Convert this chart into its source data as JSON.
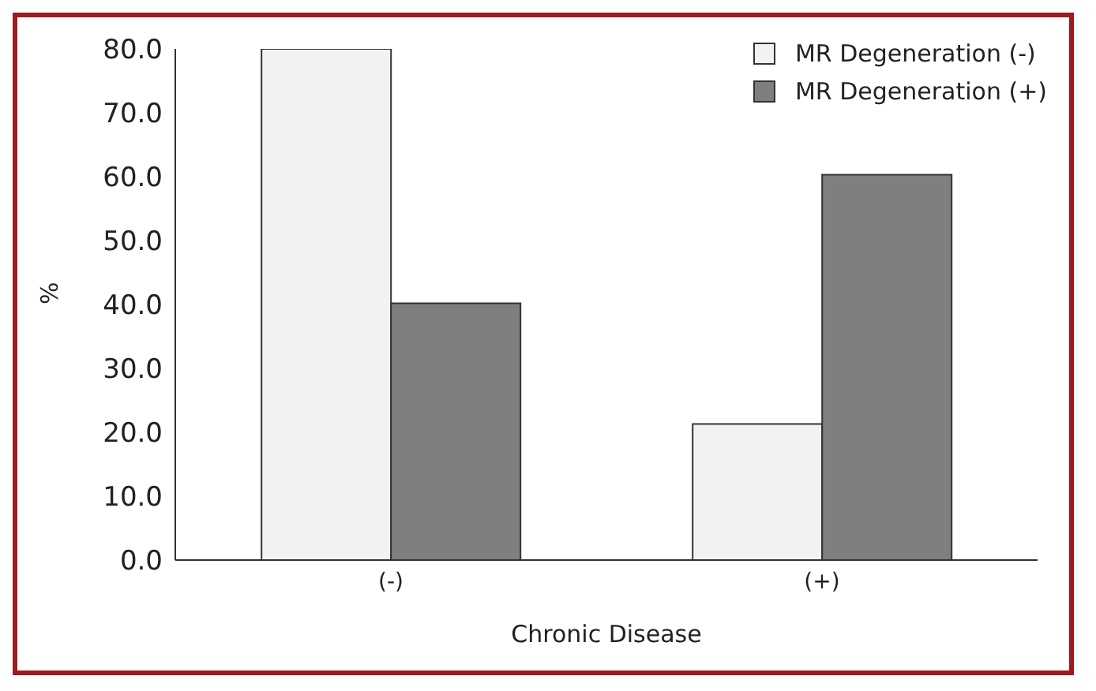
{
  "chart_data": {
    "type": "bar",
    "xlabel": "Chronic Disease",
    "ylabel": "%",
    "categories": [
      "(-)",
      "(+)"
    ],
    "series": [
      {
        "name": "MR Degeneration (-)",
        "color": "#f2f2f2",
        "values": [
          80.0,
          21.3
        ]
      },
      {
        "name": "MR Degeneration (+)",
        "color": "#7f7f7f",
        "values": [
          40.2,
          60.3
        ]
      }
    ],
    "ylim": [
      0,
      80
    ],
    "yticks": [
      {
        "value": 0,
        "label": "0.0"
      },
      {
        "value": 10,
        "label": "10.0"
      },
      {
        "value": 20,
        "label": "20.0"
      },
      {
        "value": 30,
        "label": "30.0"
      },
      {
        "value": 40,
        "label": "40.0"
      },
      {
        "value": 50,
        "label": "50.0"
      },
      {
        "value": 60,
        "label": "60.0"
      },
      {
        "value": 70,
        "label": "70.0"
      },
      {
        "value": 80,
        "label": "80.0"
      }
    ],
    "grid": false,
    "legend": "top right"
  }
}
